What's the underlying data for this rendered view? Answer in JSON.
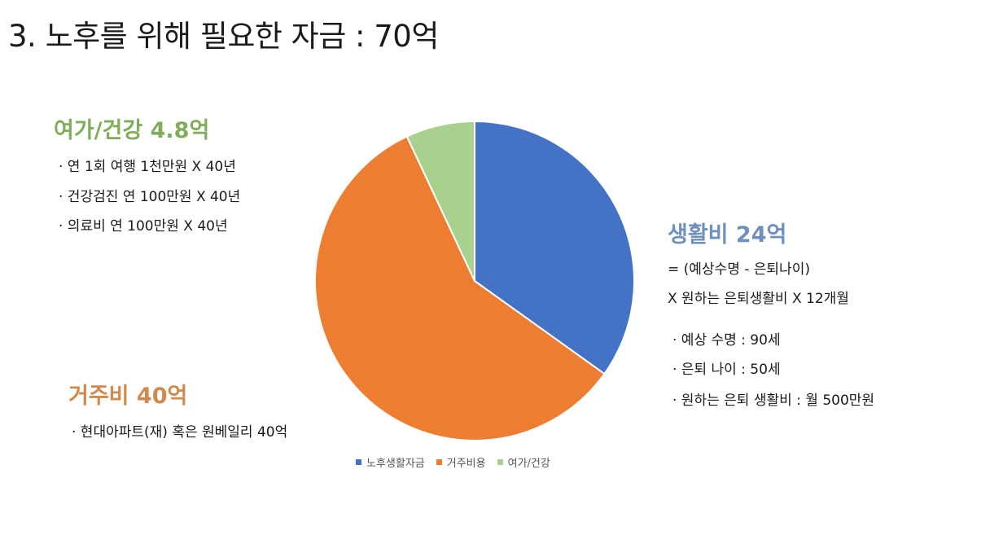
{
  "title": "3. 노후를 위해 필요한 자금 : 70억",
  "leisure": {
    "heading": "여가/건강 4.8억",
    "lines": [
      "· 연 1회 여행 1천만원 X 40년",
      "· 건강검진 연 100만원 X 40년",
      "· 의료비 연 100만원 X 40년"
    ]
  },
  "living": {
    "heading": "생활비 24억",
    "formula": [
      "= (예상수명 - 은퇴나이)",
      "X 원하는 은퇴생활비 X 12개월"
    ],
    "bullets": [
      "· 예상 수명 : 90세",
      "· 은퇴 나이 : 50세",
      "· 원하는 은퇴 생활비 : 월 500만원"
    ]
  },
  "housing": {
    "heading": "거주비 40억",
    "lines": [
      "· 현대아파트(재) 혹은 원베일리 40억"
    ]
  },
  "chart_data": {
    "type": "pie",
    "categories": [
      "노후생활자금",
      "거주비용",
      "여가/건강"
    ],
    "values": [
      24,
      40,
      4.8
    ],
    "colors": [
      "#4472c4",
      "#ed7d31",
      "#a9d18e"
    ],
    "legend_position": "bottom",
    "start": "top, clockwise"
  }
}
